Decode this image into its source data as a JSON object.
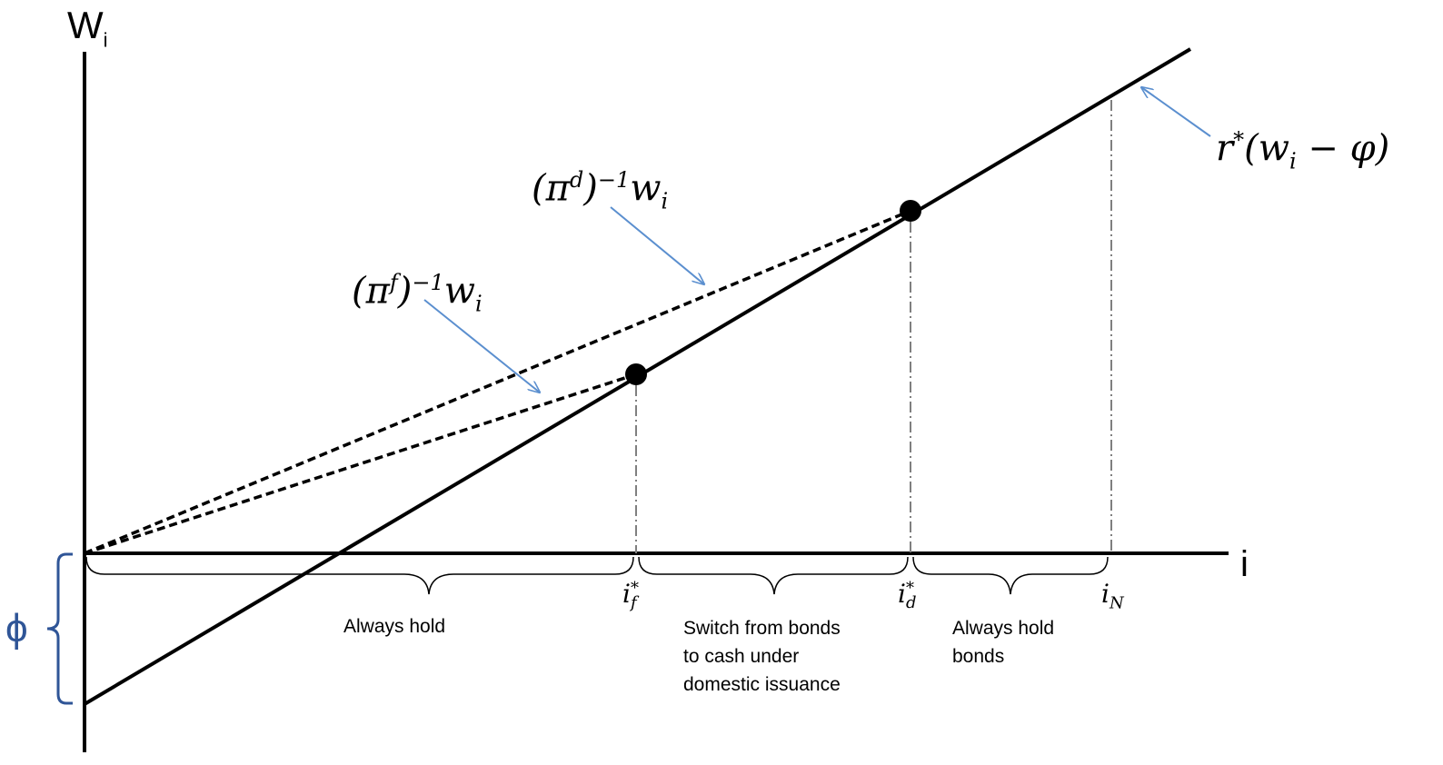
{
  "axes": {
    "y_label": "W",
    "y_label_sub": "i",
    "x_label": "i"
  },
  "intercept_label": "ϕ",
  "curves": {
    "solid": {
      "base": "r",
      "sup": "*",
      "body": "(w",
      "sub": "i",
      "tail": " − φ)"
    },
    "domestic": {
      "open": "(π",
      "sup": "d",
      "mid": ")",
      "exp": "−1",
      "body": "w",
      "sub": "i"
    },
    "foreign": {
      "open": "(π",
      "sup": "f",
      "mid": ")",
      "exp": "−1",
      "body": "w",
      "sub": "i"
    }
  },
  "thresholds": {
    "f": {
      "base": "i",
      "sup": "*",
      "sub": "f"
    },
    "d": {
      "base": "i",
      "sup": "*",
      "sub": "d"
    },
    "n": {
      "base": "i",
      "sub": "N"
    }
  },
  "regions": {
    "left": "Always hold",
    "middle": "Switch from bonds to cash under domestic issuance",
    "right": "Always hold bonds"
  },
  "colors": {
    "arrow": "#5b8fcf",
    "line": "#000000",
    "brace_phi": "#2f5597",
    "tick": "#7f7f7f"
  }
}
